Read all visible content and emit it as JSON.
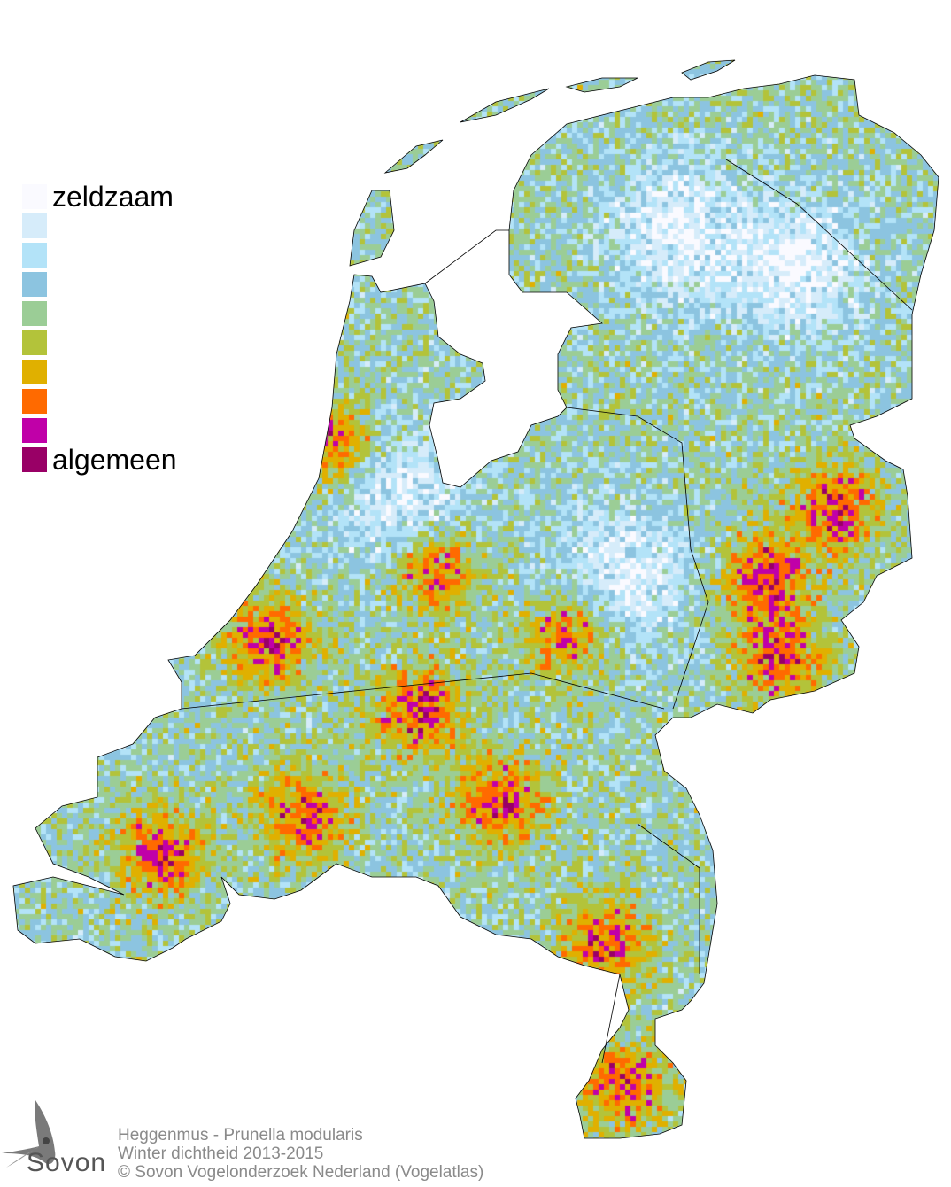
{
  "legend": {
    "min_label": "zeldzaam",
    "max_label": "algemeen",
    "colors": [
      "#fafaff",
      "#d6ecfa",
      "#b3e3f8",
      "#8cc4e0",
      "#9bcd96",
      "#b3c33a",
      "#e0b000",
      "#ff6a00",
      "#c000a8",
      "#990066"
    ]
  },
  "caption": {
    "species": "Heggenmus - Prunella modularis",
    "subtitle": "Winter dichtheid 2013-2015",
    "copyright": "© Sovon Vogelonderzoek Nederland (Vogelatlas)"
  },
  "logo": {
    "text": "Sovon"
  }
}
